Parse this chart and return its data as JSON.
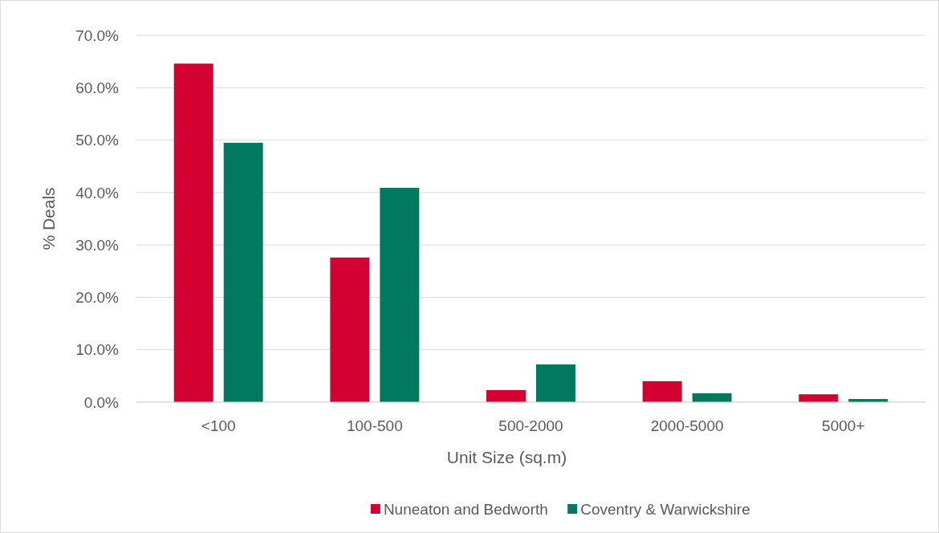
{
  "chart_data": {
    "type": "bar",
    "categories": [
      "<100",
      "100-500",
      "500-2000",
      "2000-5000",
      "5000+"
    ],
    "series": [
      {
        "name": "Nuneaton and Bedworth",
        "color": "#d50032",
        "values": [
          64.6,
          27.6,
          2.3,
          4.0,
          1.5
        ]
      },
      {
        "name": "Coventry & Warwickshire",
        "color": "#00795f",
        "values": [
          49.5,
          40.9,
          7.2,
          1.7,
          0.6
        ]
      }
    ],
    "xlabel": "Unit Size (sq.m)",
    "ylabel": "% Deals",
    "ylim": [
      0,
      70
    ],
    "yticks": [
      {
        "value": 0,
        "label": "0.0%"
      },
      {
        "value": 10,
        "label": "10.0%"
      },
      {
        "value": 20,
        "label": "20.0%"
      },
      {
        "value": 30,
        "label": "30.0%"
      },
      {
        "value": 40,
        "label": "40.0%"
      },
      {
        "value": 50,
        "label": "50.0%"
      },
      {
        "value": 60,
        "label": "60.0%"
      },
      {
        "value": 70,
        "label": "70.0%"
      }
    ],
    "grid": "y",
    "legend": "bottom"
  }
}
